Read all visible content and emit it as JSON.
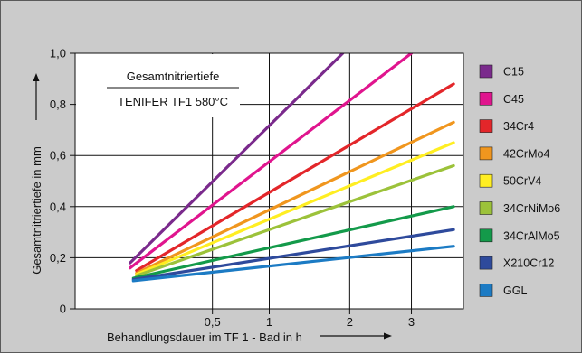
{
  "chart_data": {
    "type": "line",
    "title": "Gesamtnitriertiefe",
    "subtitle": "TENIFER TF1 580°C",
    "xlabel": "Behandlungsdauer im TF 1 - Bad in h",
    "ylabel": "Gesamtnitriertiefe in mm",
    "x_scale": "sqrt",
    "x_ticks": [
      {
        "value": 0.5,
        "label": "0,5"
      },
      {
        "value": 1,
        "label": "1"
      },
      {
        "value": 2,
        "label": "2"
      },
      {
        "value": 3,
        "label": "3"
      }
    ],
    "y_ticks": [
      {
        "value": 0,
        "label": "0"
      },
      {
        "value": 0.2,
        "label": "0,2"
      },
      {
        "value": 0.4,
        "label": "0,4"
      },
      {
        "value": 0.6,
        "label": "0,6"
      },
      {
        "value": 0.8,
        "label": "0,8"
      },
      {
        "value": 1.0,
        "label": "1,0"
      }
    ],
    "xlim": [
      0,
      4
    ],
    "ylim": [
      0,
      1.0
    ],
    "grid": true,
    "legend_position": "right",
    "series": [
      {
        "name": "C15",
        "color": "#7a2a8c",
        "x": [
          0.08,
          1.9
        ],
        "y": [
          0.18,
          1.0
        ]
      },
      {
        "name": "C45",
        "color": "#e0158e",
        "x": [
          0.08,
          3.0
        ],
        "y": [
          0.16,
          1.0
        ]
      },
      {
        "name": "34Cr4",
        "color": "#e3262a",
        "x": [
          0.1,
          3.8
        ],
        "y": [
          0.15,
          0.88
        ]
      },
      {
        "name": "42CrMo4",
        "color": "#f0961e",
        "x": [
          0.1,
          3.8
        ],
        "y": [
          0.14,
          0.73
        ]
      },
      {
        "name": "50CrV4",
        "color": "#ffee22",
        "x": [
          0.1,
          3.8
        ],
        "y": [
          0.135,
          0.65
        ]
      },
      {
        "name": "34CrNiMo6",
        "color": "#9cc23a",
        "x": [
          0.1,
          3.8
        ],
        "y": [
          0.13,
          0.56
        ]
      },
      {
        "name": "34CrAlMo5",
        "color": "#139a4a",
        "x": [
          0.09,
          3.8
        ],
        "y": [
          0.12,
          0.4
        ]
      },
      {
        "name": "X210Cr12",
        "color": "#2e4a9c",
        "x": [
          0.09,
          3.8
        ],
        "y": [
          0.115,
          0.31
        ]
      },
      {
        "name": "GGL",
        "color": "#1c7bc4",
        "x": [
          0.09,
          3.8
        ],
        "y": [
          0.11,
          0.245
        ]
      }
    ]
  }
}
